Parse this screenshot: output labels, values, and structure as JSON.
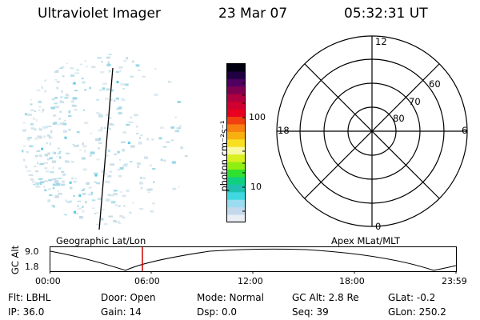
{
  "header": {
    "title": "Ultraviolet Imager",
    "date": "23 Mar 07",
    "time": "05:32:31  UT"
  },
  "colorbar": {
    "unit_label": "photon cm⁻²s⁻¹",
    "tick_high": "100",
    "tick_low": "10",
    "colors": [
      "#e8eef4",
      "#c4d8ec",
      "#9adcf0",
      "#40d8e0",
      "#20c0b0",
      "#10d080",
      "#30e030",
      "#90ee10",
      "#d8f020",
      "#f8f8a0",
      "#f8e020",
      "#f8b010",
      "#f88010",
      "#f04010",
      "#e80020",
      "#d00030",
      "#b00040",
      "#800050",
      "#500060",
      "#200040",
      "#000010"
    ]
  },
  "left_panel": {
    "label": "Geographic Lat/Lon"
  },
  "right_panel": {
    "label": "Apex MLat/MLT",
    "mlt_labels": {
      "top": "12",
      "left": "18",
      "right": "6",
      "bottom": "0"
    },
    "lat_labels": [
      "60",
      "70",
      "80"
    ]
  },
  "altitude_plot": {
    "ylabel": "GC Alt",
    "y_ticks": [
      "9.0",
      "1.8"
    ],
    "x_ticks": [
      "00:00",
      "06:00",
      "12:00",
      "18:00",
      "23:59"
    ],
    "marker_color": "#cc0000"
  },
  "info": {
    "flt": "Flt: LBHL",
    "ip": "IP: 36.0",
    "door": "Door: Open",
    "gain": "Gain: 14",
    "mode": "Mode: Normal",
    "dsp": "Dsp:     0.0",
    "gc_alt": "GC Alt: 2.8 Re",
    "seq": "Seq: 39",
    "glat": "GLat:  -0.2",
    "glon": "GLon: 250.2"
  }
}
